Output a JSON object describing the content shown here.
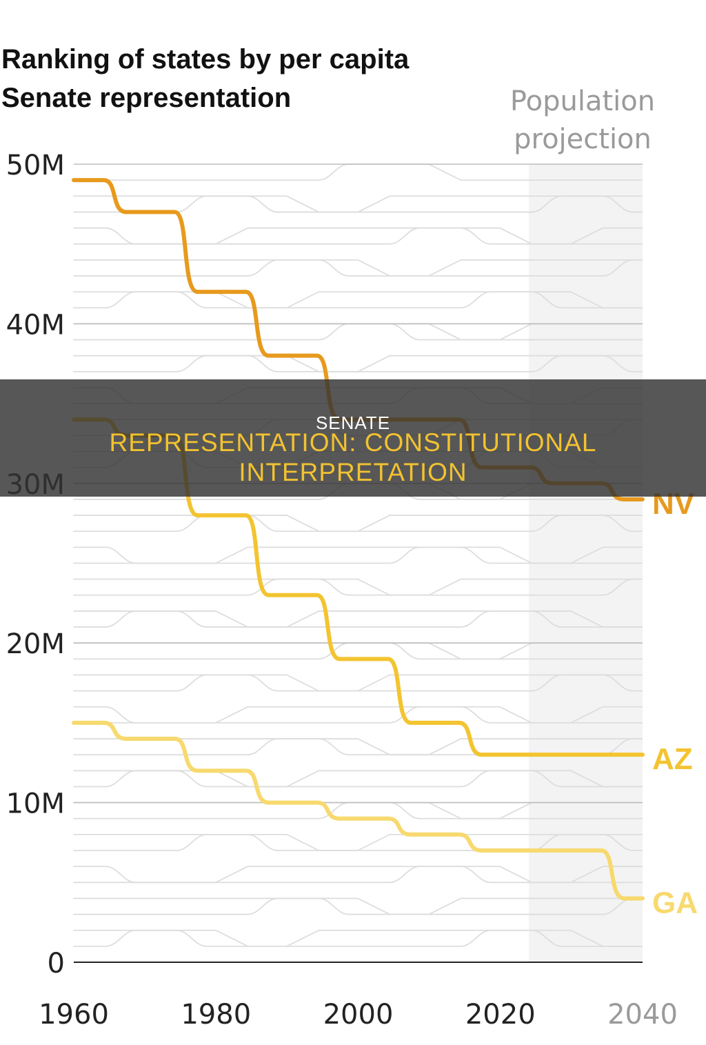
{
  "title": "Ranking of states by per capita Senate representation",
  "projection_label": "Population projection",
  "banner": {
    "small": "SENATE",
    "big": "REPRESENTATION: CONSTITUTIONAL INTERPRETATION"
  },
  "colors": {
    "NV": "#e79a1d",
    "AZ": "#f3c431",
    "GA": "#f7d96e",
    "background_lines": "#dddddd",
    "gridlines": "#bdbdbd",
    "projection_band": "#f3f3f3"
  },
  "chart_data": {
    "type": "line",
    "title": "Ranking of states by per capita Senate representation",
    "xlabel": "",
    "ylabel": "",
    "x_ticks": [
      "1960",
      "1980",
      "2000",
      "2020",
      "2040"
    ],
    "y_ticks": [
      "0",
      "10M",
      "20M",
      "30M",
      "40M",
      "50M"
    ],
    "y_tick_values": [
      0,
      10,
      20,
      30,
      40,
      50
    ],
    "y_unit": "M",
    "xlim": [
      1960,
      2040
    ],
    "ylim": [
      0,
      50
    ],
    "grid": true,
    "projection_range": [
      2024,
      2040
    ],
    "x": [
      1960,
      1970,
      1980,
      1990,
      2000,
      2010,
      2020,
      2030,
      2040
    ],
    "series": [
      {
        "name": "NV",
        "values": [
          49,
          47,
          42,
          38,
          34,
          34,
          31,
          30,
          29
        ]
      },
      {
        "name": "AZ",
        "values": [
          34,
          33,
          28,
          23,
          19,
          15,
          13,
          13,
          13
        ]
      },
      {
        "name": "GA",
        "values": [
          15,
          14,
          12,
          10,
          9,
          8,
          7,
          7,
          4
        ]
      }
    ]
  }
}
